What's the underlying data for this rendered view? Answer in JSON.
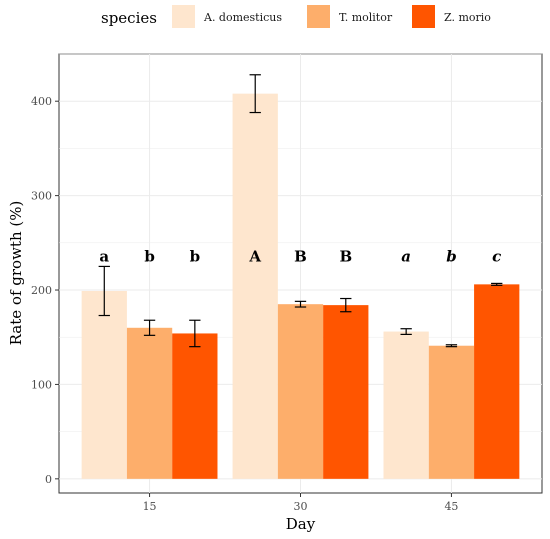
{
  "chart_data": {
    "type": "bar",
    "xlabel": "Day",
    "ylabel": "Rate of growth (%)",
    "categories": [
      "15",
      "30",
      "45"
    ],
    "ylim": [
      -15,
      450
    ],
    "yticks": [
      0,
      100,
      200,
      300,
      400
    ],
    "grid": true,
    "legend": {
      "title": "species",
      "position": "top"
    },
    "series": [
      {
        "name": "A. domesticus",
        "color": "#FEE6CE",
        "values": [
          199,
          408,
          156
        ],
        "error": [
          26,
          20,
          3
        ],
        "letters": [
          "a",
          "A",
          "a"
        ]
      },
      {
        "name": "T. molitor",
        "color": "#FDAE6B",
        "values": [
          160,
          185,
          141
        ],
        "error": [
          8,
          3,
          1
        ],
        "letters": [
          "b",
          "B",
          "b"
        ]
      },
      {
        "name": "Z. morio",
        "color": "#FF5500",
        "values": [
          154,
          184,
          206
        ],
        "error": [
          14,
          7,
          1
        ],
        "letters": [
          "b",
          "B",
          "c"
        ]
      }
    ],
    "letter_style": [
      "normal",
      "normal",
      "italic"
    ]
  }
}
